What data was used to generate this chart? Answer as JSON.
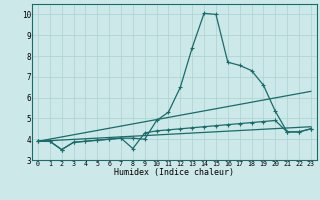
{
  "xlabel": "Humidex (Indice chaleur)",
  "ylabel": "",
  "bg_color": "#cce8e8",
  "line_color": "#1a6b6b",
  "grid_color": "#b0d4d4",
  "xlim": [
    -0.5,
    23.5
  ],
  "ylim": [
    3.0,
    10.5
  ],
  "yticks": [
    3,
    4,
    5,
    6,
    7,
    8,
    9,
    10
  ],
  "xticks": [
    0,
    1,
    2,
    3,
    4,
    5,
    6,
    7,
    8,
    9,
    10,
    11,
    12,
    13,
    14,
    15,
    16,
    17,
    18,
    19,
    20,
    21,
    22,
    23
  ],
  "line1_x": [
    0,
    1,
    2,
    3,
    4,
    5,
    6,
    7,
    8,
    9,
    10,
    11,
    12,
    13,
    14,
    15,
    16,
    17,
    18,
    19,
    20,
    21,
    22,
    23
  ],
  "line1_y": [
    3.9,
    3.9,
    3.5,
    3.85,
    3.9,
    3.95,
    4.0,
    4.05,
    4.05,
    4.0,
    4.9,
    5.3,
    6.5,
    8.4,
    10.05,
    10.0,
    7.7,
    7.55,
    7.3,
    6.6,
    5.35,
    4.35,
    4.35,
    4.5
  ],
  "line2_x": [
    0,
    1,
    2,
    3,
    4,
    5,
    6,
    7,
    8,
    9,
    10,
    11,
    12,
    13,
    14,
    15,
    16,
    17,
    18,
    19,
    20,
    21,
    22,
    23
  ],
  "line2_y": [
    3.9,
    3.9,
    3.5,
    3.85,
    3.9,
    3.95,
    4.0,
    4.05,
    3.55,
    4.3,
    4.4,
    4.45,
    4.5,
    4.55,
    4.6,
    4.65,
    4.7,
    4.75,
    4.8,
    4.85,
    4.9,
    4.35,
    4.35,
    4.5
  ],
  "line3_x": [
    0,
    23
  ],
  "line3_y": [
    3.9,
    6.3
  ],
  "line4_x": [
    0,
    23
  ],
  "line4_y": [
    3.9,
    4.6
  ]
}
